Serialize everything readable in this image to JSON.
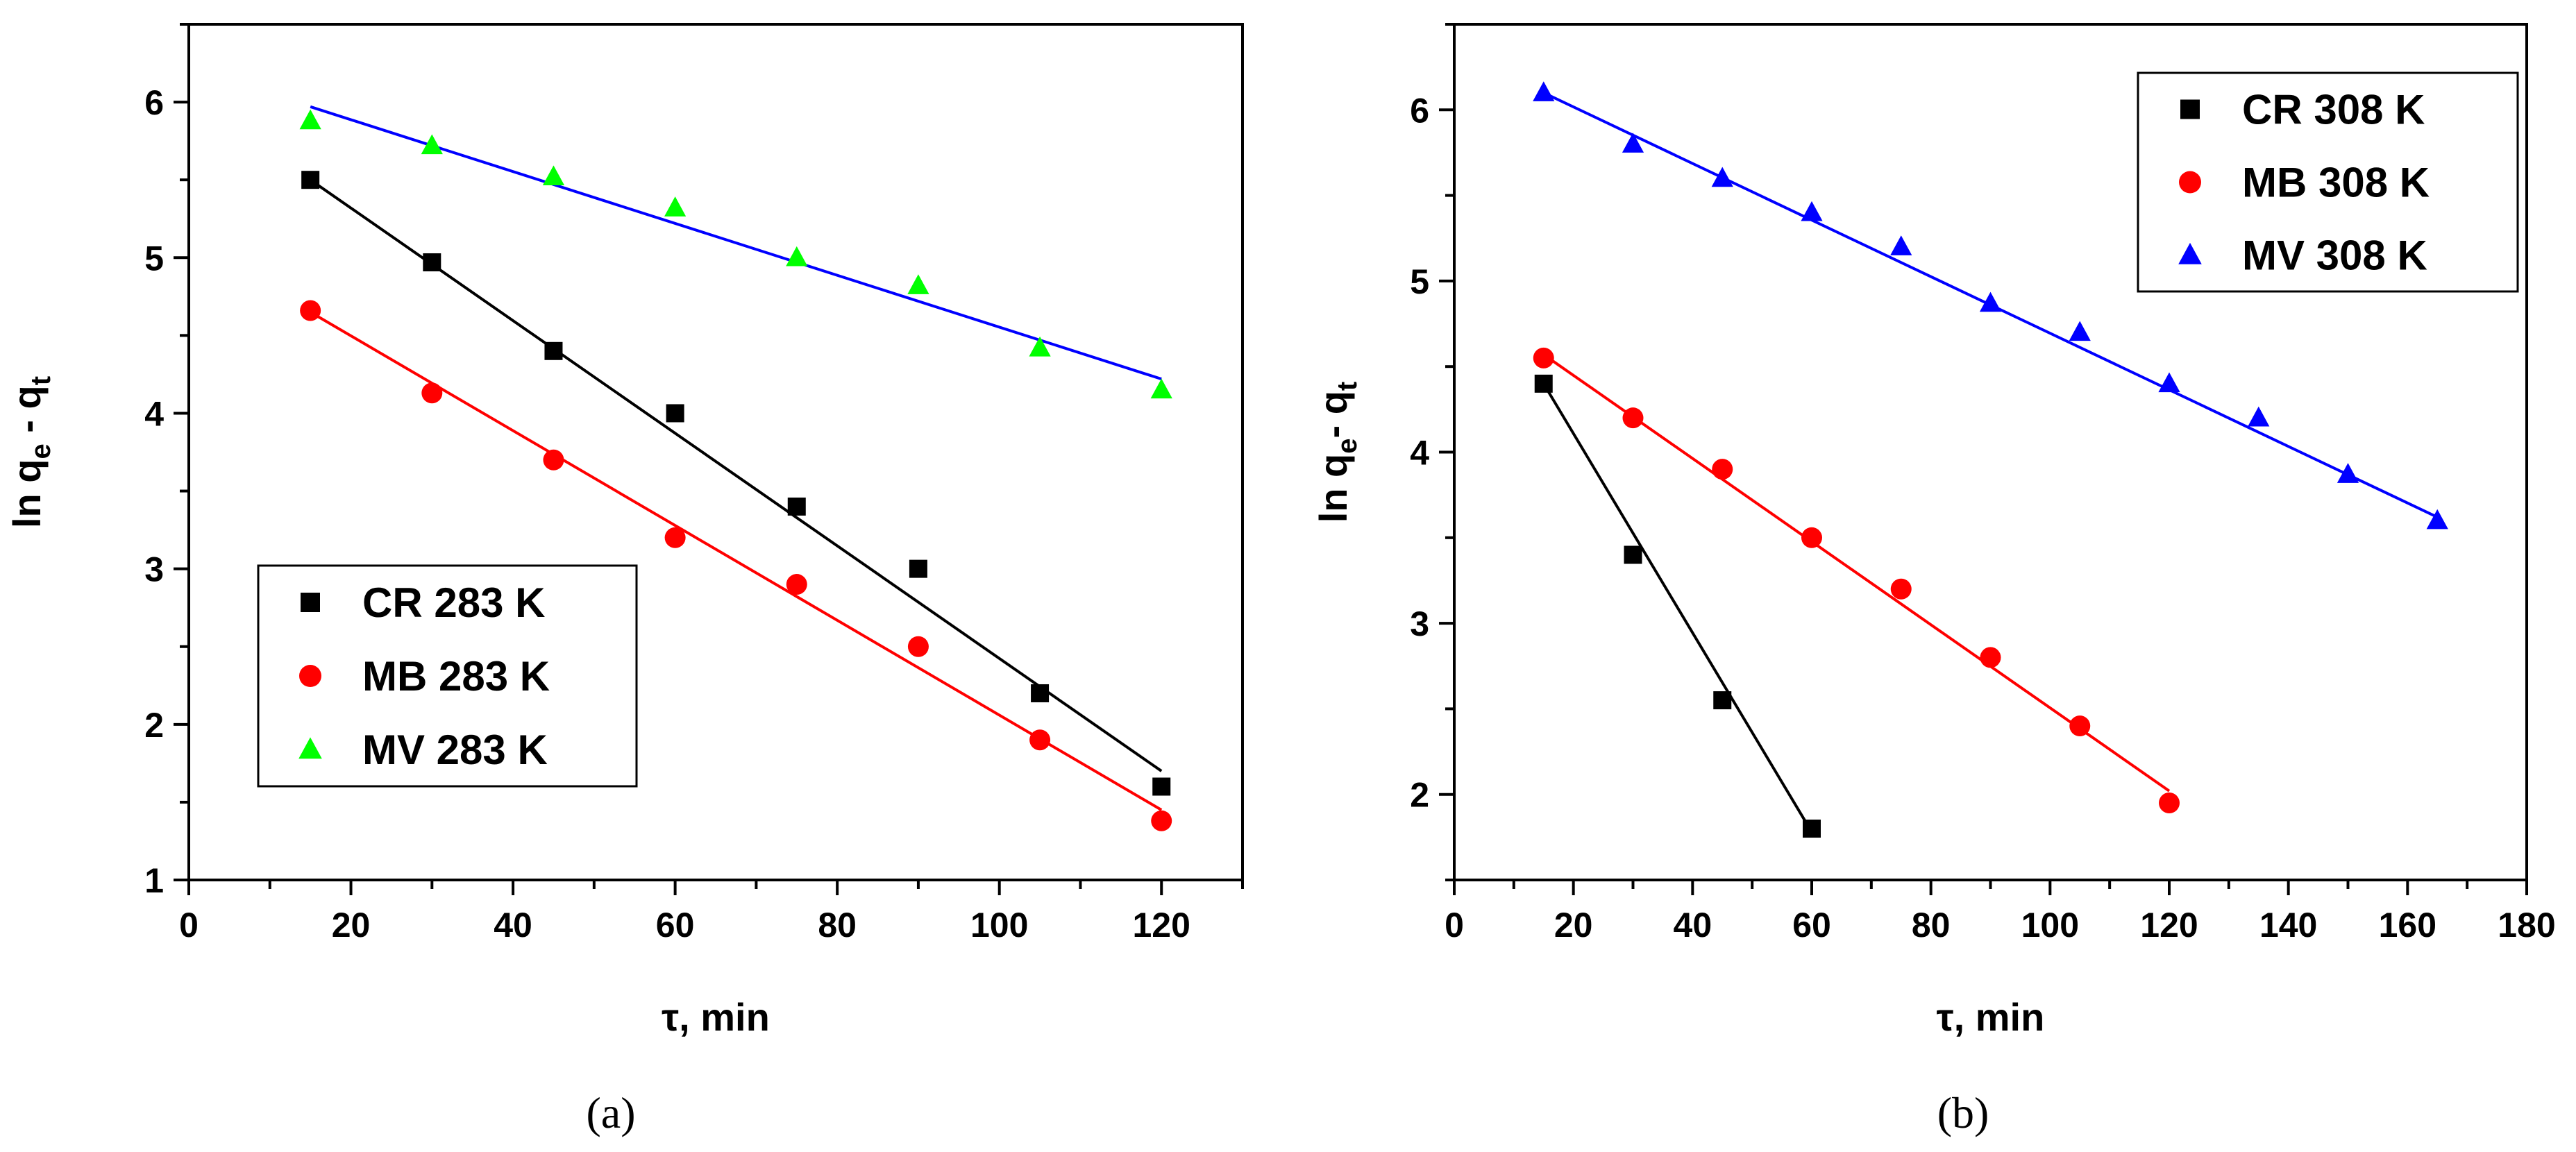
{
  "chart_data": [
    {
      "type": "scatter",
      "panel_caption": "(a)",
      "xlabel": "τ, min",
      "ylabel": "ln q_e - q_t",
      "ylabel_parts": {
        "main": "ln q",
        "sub1": "e",
        "mid": " - q",
        "sub2": "t"
      },
      "xlim": [
        0,
        130
      ],
      "ylim": [
        1,
        6.5
      ],
      "xticks": [
        0,
        20,
        40,
        60,
        80,
        100,
        120
      ],
      "yticks": [
        1,
        2,
        3,
        4,
        5,
        6
      ],
      "legend_position": "lower-left",
      "series": [
        {
          "name": "CR 283 K",
          "marker": "square",
          "color": "#000000",
          "x": [
            15,
            30,
            45,
            60,
            75,
            90,
            105,
            120
          ],
          "y": [
            5.5,
            4.97,
            4.4,
            4.0,
            3.4,
            3.0,
            2.2,
            1.6
          ],
          "fit": [
            [
              15,
              5.5
            ],
            [
              120,
              1.7
            ]
          ]
        },
        {
          "name": "MB 283 K",
          "marker": "circle",
          "color": "#ff0000",
          "x": [
            15,
            30,
            45,
            60,
            75,
            90,
            105,
            120
          ],
          "y": [
            4.66,
            4.13,
            3.7,
            3.2,
            2.9,
            2.5,
            1.9,
            1.38
          ],
          "fit": [
            [
              15,
              4.65
            ],
            [
              120,
              1.45
            ]
          ]
        },
        {
          "name": "MV 283 K",
          "marker": "triangle",
          "color": "#00ff00",
          "line_color": "#0000ff",
          "x": [
            15,
            30,
            45,
            60,
            75,
            90,
            105,
            120
          ],
          "y": [
            5.88,
            5.72,
            5.52,
            5.32,
            5.0,
            4.82,
            4.42,
            4.15
          ],
          "fit": [
            [
              15,
              5.97
            ],
            [
              120,
              4.22
            ]
          ]
        }
      ]
    },
    {
      "type": "scatter",
      "panel_caption": "(b)",
      "xlabel": "τ, min",
      "ylabel": "ln q_e- q_t",
      "ylabel_parts": {
        "main": "ln q",
        "sub1": "e",
        "mid": "- q",
        "sub2": "t"
      },
      "xlim": [
        0,
        180
      ],
      "ylim": [
        1.5,
        6.5
      ],
      "xticks": [
        0,
        20,
        40,
        60,
        80,
        100,
        120,
        140,
        160,
        180
      ],
      "yticks": [
        2,
        3,
        4,
        5,
        6
      ],
      "legend_position": "top-right",
      "series": [
        {
          "name": "CR 308 K",
          "marker": "square",
          "color": "#000000",
          "x": [
            15,
            30,
            45,
            60
          ],
          "y": [
            4.4,
            3.4,
            2.55,
            1.8
          ],
          "fit": [
            [
              15,
              4.4
            ],
            [
              60,
              1.78
            ]
          ]
        },
        {
          "name": "MB 308 K",
          "marker": "circle",
          "color": "#ff0000",
          "x": [
            15,
            30,
            45,
            60,
            75,
            90,
            105,
            120
          ],
          "y": [
            4.55,
            4.2,
            3.9,
            3.5,
            3.2,
            2.8,
            2.4,
            1.95
          ],
          "fit": [
            [
              15,
              4.57
            ],
            [
              120,
              2.02
            ]
          ]
        },
        {
          "name": "MV 308 K",
          "marker": "triangle",
          "color": "#0000ff",
          "x": [
            15,
            30,
            45,
            60,
            75,
            90,
            105,
            120,
            135,
            150,
            165
          ],
          "y": [
            6.1,
            5.8,
            5.6,
            5.4,
            5.2,
            4.87,
            4.7,
            4.4,
            4.2,
            3.87,
            3.6
          ],
          "fit": [
            [
              15,
              6.1
            ],
            [
              165,
              3.62
            ]
          ]
        }
      ]
    }
  ]
}
